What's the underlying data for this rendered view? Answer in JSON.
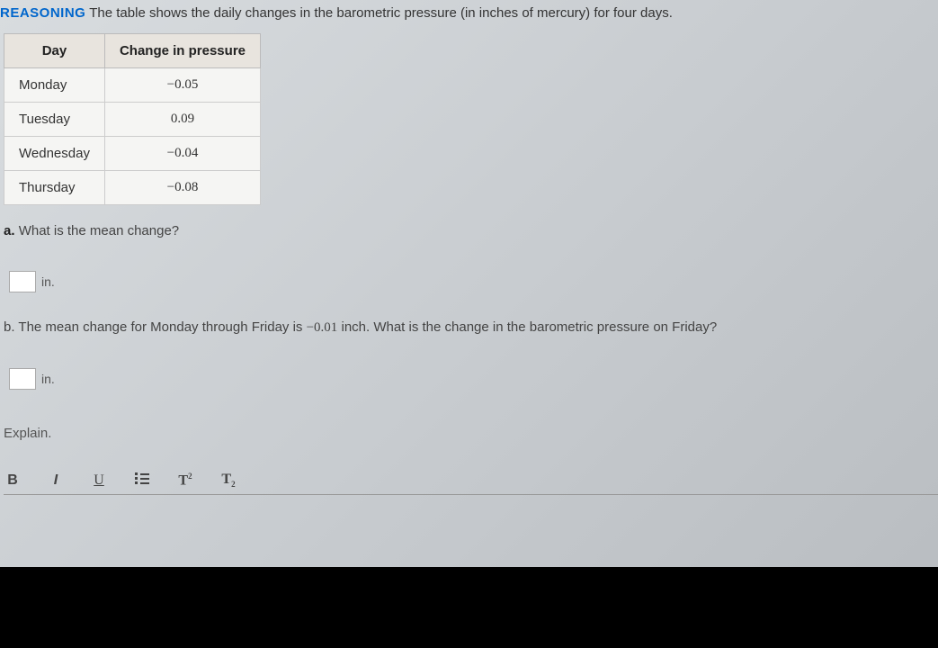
{
  "header": {
    "label": "REASONING",
    "text": "The table shows the daily changes in the barometric pressure (in inches of mercury) for four days."
  },
  "table": {
    "columns": [
      "Day",
      "Change in pressure"
    ],
    "rows": [
      [
        "Monday",
        "−0.05"
      ],
      [
        "Tuesday",
        "0.09"
      ],
      [
        "Wednesday",
        "−0.04"
      ],
      [
        "Thursday",
        "−0.08"
      ]
    ],
    "header_bg": "#e8e4de",
    "cell_bg": "#f5f5f3",
    "border_color": "#cccccc"
  },
  "question_a": {
    "label": "a.",
    "text": "What is the mean change?",
    "unit": "in."
  },
  "question_b": {
    "label": "b.",
    "text_prefix": "The mean change for Monday through Friday is ",
    "value": "−0.01",
    "text_suffix": " inch. What is the change in the barometric pressure on Friday?",
    "unit": "in."
  },
  "explain": {
    "label": "Explain."
  },
  "toolbar": {
    "bold": "B",
    "italic": "I",
    "underline": "U",
    "superscript": "T",
    "superscript_exp": "2",
    "subscript": "T",
    "subscript_sub": "2"
  },
  "colors": {
    "reasoning_label": "#0066cc",
    "body_text": "#333333",
    "muted_text": "#555555"
  }
}
